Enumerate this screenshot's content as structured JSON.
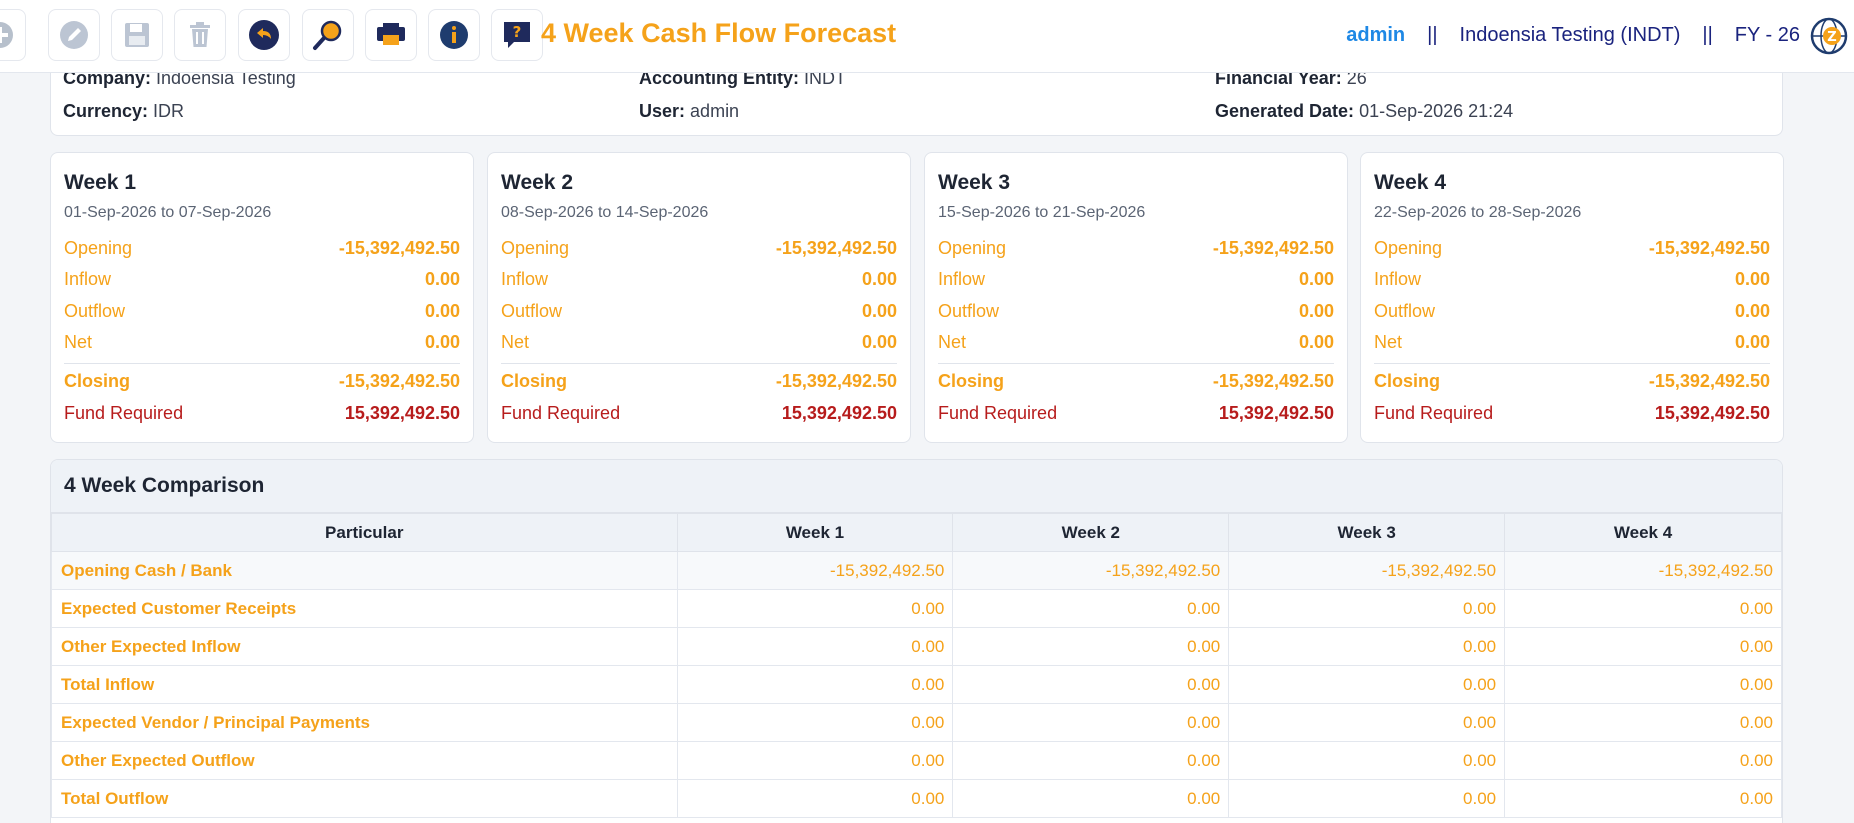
{
  "toolbar": {
    "title": "4 Week Cash Flow Forecast",
    "user": "admin",
    "separator": "||",
    "entity": "Indoensia Testing (INDT)",
    "fy": "FY - 26",
    "icons": [
      "add-icon",
      "edit-icon",
      "save-icon",
      "delete-icon",
      "back-icon",
      "search-icon",
      "print-icon",
      "info-icon",
      "help-icon",
      "globe-icon"
    ]
  },
  "info": {
    "company_label": "Company:",
    "company_value": "Indoensia Testing",
    "entity_label": "Accounting Entity:",
    "entity_value": "INDT",
    "fy_label": "Financial Year:",
    "fy_value": "26",
    "currency_label": "Currency:",
    "currency_value": "IDR",
    "user_label": "User:",
    "user_value": "admin",
    "generated_label": "Generated Date:",
    "generated_value": "01-Sep-2026 21:24"
  },
  "labels": {
    "opening": "Opening",
    "inflow": "Inflow",
    "outflow": "Outflow",
    "net": "Net",
    "closing": "Closing",
    "fund": "Fund Required"
  },
  "weeks": [
    {
      "title": "Week 1",
      "range": "01-Sep-2026 to 07-Sep-2026",
      "opening": "-15,392,492.50",
      "inflow": "0.00",
      "outflow": "0.00",
      "net": "0.00",
      "closing": "-15,392,492.50",
      "fund": "15,392,492.50"
    },
    {
      "title": "Week 2",
      "range": "08-Sep-2026 to 14-Sep-2026",
      "opening": "-15,392,492.50",
      "inflow": "0.00",
      "outflow": "0.00",
      "net": "0.00",
      "closing": "-15,392,492.50",
      "fund": "15,392,492.50"
    },
    {
      "title": "Week 3",
      "range": "15-Sep-2026 to 21-Sep-2026",
      "opening": "-15,392,492.50",
      "inflow": "0.00",
      "outflow": "0.00",
      "net": "0.00",
      "closing": "-15,392,492.50",
      "fund": "15,392,492.50"
    },
    {
      "title": "Week 4",
      "range": "22-Sep-2026 to 28-Sep-2026",
      "opening": "-15,392,492.50",
      "inflow": "0.00",
      "outflow": "0.00",
      "net": "0.00",
      "closing": "-15,392,492.50",
      "fund": "15,392,492.50"
    }
  ],
  "comparison": {
    "title": "4 Week Comparison",
    "headers": [
      "Particular",
      "Week 1",
      "Week 2",
      "Week 3",
      "Week 4"
    ],
    "rows": [
      {
        "particular": "Opening Cash / Bank",
        "values": [
          "-15,392,492.50",
          "-15,392,492.50",
          "-15,392,492.50",
          "-15,392,492.50"
        ]
      },
      {
        "particular": "Expected Customer Receipts",
        "values": [
          "0.00",
          "0.00",
          "0.00",
          "0.00"
        ]
      },
      {
        "particular": "Other Expected Inflow",
        "values": [
          "0.00",
          "0.00",
          "0.00",
          "0.00"
        ]
      },
      {
        "particular": "Total Inflow",
        "values": [
          "0.00",
          "0.00",
          "0.00",
          "0.00"
        ]
      },
      {
        "particular": "Expected Vendor / Principal Payments",
        "values": [
          "0.00",
          "0.00",
          "0.00",
          "0.00"
        ]
      },
      {
        "particular": "Other Expected Outflow",
        "values": [
          "0.00",
          "0.00",
          "0.00",
          "0.00"
        ]
      },
      {
        "particular": "Total Outflow",
        "values": [
          "0.00",
          "0.00",
          "0.00",
          "0.00"
        ]
      }
    ]
  },
  "colors": {
    "accent": "#f5a21a",
    "danger": "#b71c1c",
    "navy": "#1a237e",
    "link": "#1e88e5"
  }
}
